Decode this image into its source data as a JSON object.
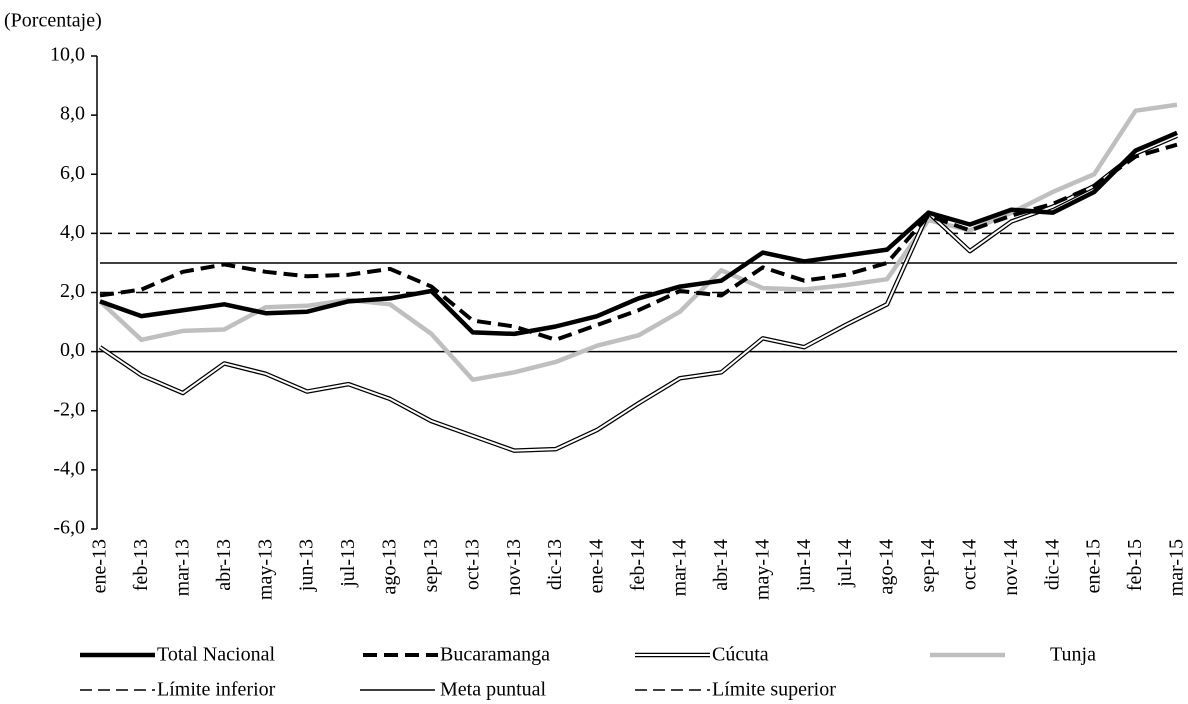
{
  "chart_data": {
    "type": "line",
    "title": "(Porcentaje)",
    "categories": [
      "ene-13",
      "feb-13",
      "mar-13",
      "abr-13",
      "may-13",
      "jun-13",
      "jul-13",
      "ago-13",
      "sep-13",
      "oct-13",
      "nov-13",
      "dic-13",
      "ene-14",
      "feb-14",
      "mar-14",
      "abr-14",
      "may-14",
      "jun-14",
      "jul-14",
      "ago-14",
      "sep-14",
      "oct-14",
      "nov-14",
      "dic-14",
      "ene-15",
      "feb-15",
      "mar-15"
    ],
    "ylim": [
      -6,
      10
    ],
    "yticks": [
      {
        "value": -6,
        "label": "-6,0"
      },
      {
        "value": -4,
        "label": "-4,0"
      },
      {
        "value": -2,
        "label": "-2,0"
      },
      {
        "value": 0,
        "label": "0,0"
      },
      {
        "value": 2,
        "label": "2,0"
      },
      {
        "value": 4,
        "label": "4,0"
      },
      {
        "value": 6,
        "label": "6,0"
      },
      {
        "value": 8,
        "label": "8,0"
      },
      {
        "value": 10,
        "label": "10,0"
      }
    ],
    "series": [
      {
        "name": "Total Nacional",
        "color": "#000000",
        "style": "solid",
        "width": 4.5,
        "values": [
          1.7,
          1.2,
          1.4,
          1.6,
          1.3,
          1.35,
          1.7,
          1.8,
          2.05,
          0.65,
          0.6,
          0.85,
          1.2,
          1.8,
          2.2,
          2.4,
          3.35,
          3.05,
          3.25,
          3.45,
          4.7,
          4.3,
          4.8,
          4.7,
          5.4,
          6.8,
          7.4
        ]
      },
      {
        "name": "Bucaramanga",
        "color": "#000000",
        "style": "dashed",
        "width": 4,
        "values": [
          1.9,
          2.1,
          2.7,
          2.95,
          2.7,
          2.55,
          2.6,
          2.8,
          2.2,
          1.05,
          0.85,
          0.4,
          0.9,
          1.4,
          2.05,
          1.9,
          2.85,
          2.4,
          2.6,
          3.0,
          4.6,
          4.1,
          4.6,
          5.0,
          5.6,
          6.6,
          7.0
        ]
      },
      {
        "name": "Cúcuta",
        "color": "#000000",
        "style": "double",
        "width": 4.5,
        "values": [
          0.15,
          -0.8,
          -1.4,
          -0.4,
          -0.75,
          -1.35,
          -1.1,
          -1.6,
          -2.35,
          -2.85,
          -3.35,
          -3.3,
          -2.65,
          -1.75,
          -0.9,
          -0.7,
          0.45,
          0.15,
          0.9,
          1.6,
          4.7,
          3.4,
          4.4,
          4.9,
          5.6,
          6.7,
          7.3
        ]
      },
      {
        "name": "Tunja",
        "color": "#bfbfbf",
        "style": "solid",
        "width": 4.5,
        "values": [
          1.7,
          0.4,
          0.7,
          0.75,
          1.5,
          1.55,
          1.75,
          1.6,
          0.6,
          -0.95,
          -0.7,
          -0.35,
          0.2,
          0.55,
          1.35,
          2.75,
          2.15,
          2.1,
          2.25,
          2.45,
          4.45,
          4.1,
          4.7,
          5.4,
          6.0,
          8.15,
          8.35
        ]
      },
      {
        "name": "Límite inferior",
        "color": "#000000",
        "style": "thin-dashed",
        "width": 1.5,
        "values": [
          2,
          2,
          2,
          2,
          2,
          2,
          2,
          2,
          2,
          2,
          2,
          2,
          2,
          2,
          2,
          2,
          2,
          2,
          2,
          2,
          2,
          2,
          2,
          2,
          2,
          2,
          2
        ]
      },
      {
        "name": "Meta puntual",
        "color": "#000000",
        "style": "solid",
        "width": 1.5,
        "values": [
          3,
          3,
          3,
          3,
          3,
          3,
          3,
          3,
          3,
          3,
          3,
          3,
          3,
          3,
          3,
          3,
          3,
          3,
          3,
          3,
          3,
          3,
          3,
          3,
          3,
          3,
          3
        ]
      },
      {
        "name": "Límite superior",
        "color": "#000000",
        "style": "thin-dashed",
        "width": 1.5,
        "values": [
          4,
          4,
          4,
          4,
          4,
          4,
          4,
          4,
          4,
          4,
          4,
          4,
          4,
          4,
          4,
          4,
          4,
          4,
          4,
          4,
          4,
          4,
          4,
          4,
          4,
          4,
          4
        ]
      }
    ]
  }
}
